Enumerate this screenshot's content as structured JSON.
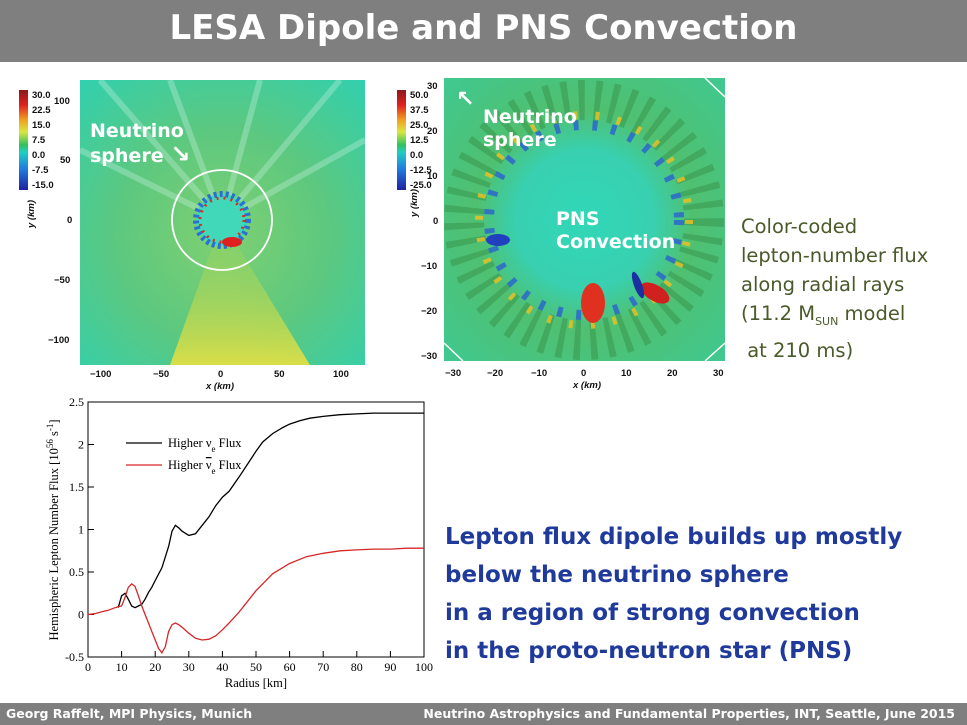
{
  "slide": {
    "title": "LESA Dipole and PNS Convection",
    "footer_left": "Georg Raffelt, MPI Physics, Munich",
    "footer_right": "Neutrino Astrophysics and Fundamental Properties, INT, Seattle, June 2015"
  },
  "left_map": {
    "colorbar_ticks": [
      "30.0",
      "22.5",
      "15.0",
      "7.5",
      "0.0",
      "-7.5",
      "-15.0"
    ],
    "y_ticks": [
      "100",
      "50",
      "0",
      "−50",
      "−100"
    ],
    "x_ticks": [
      "−100",
      "−50",
      "0",
      "50",
      "100"
    ],
    "y_label": "y (km)",
    "x_label": "x (km)",
    "label_line1": "Neutrino",
    "label_line2": "sphere",
    "arrow": "↘"
  },
  "right_map": {
    "colorbar_ticks": [
      "50.0",
      "37.5",
      "25.0",
      "12.5",
      "0.0",
      "-12.5",
      "-25.0"
    ],
    "y_ticks": [
      "30",
      "20",
      "10",
      "0",
      "−10",
      "−20",
      "−30"
    ],
    "x_ticks": [
      "−30",
      "−20",
      "−10",
      "0",
      "10",
      "20",
      "30"
    ],
    "y_label": "y (km)",
    "x_label": "x (km)",
    "label_line1": "Neutrino",
    "label_line2": "sphere",
    "arrow": "↖",
    "convection_line1": "PNS",
    "convection_line2": "Convection"
  },
  "caption": {
    "line1": "Color-coded",
    "line2": "lepton-number flux",
    "line3": "along radial rays",
    "line4_pre": "(11.2 M",
    "line4_sub": "SUN",
    "line4_post": " model",
    "line5": " at 210 ms)"
  },
  "headline": {
    "line1": "Lepton flux dipole builds up mostly",
    "line2": "below the neutrino sphere",
    "line3": "in a region of strong convection",
    "line4": "in the proto-neutron star (PNS)"
  },
  "chart_data": {
    "type": "line",
    "xlabel": "Radius [km]",
    "ylabel": "Hemispheric Lepton Number Flux [10^56 s^-1]",
    "xlim": [
      0,
      100
    ],
    "ylim": [
      -0.5,
      2.5
    ],
    "x_ticks": [
      0,
      10,
      20,
      30,
      40,
      50,
      60,
      70,
      80,
      90,
      100
    ],
    "y_ticks": [
      -0.5,
      0,
      0.5,
      1,
      1.5,
      2,
      2.5
    ],
    "legend_position": "upper-left",
    "series": [
      {
        "name": "Higher νe Flux",
        "color": "#000000",
        "x": [
          9,
          10,
          11,
          12,
          13,
          14,
          15,
          16,
          17,
          18,
          19,
          20,
          22,
          24,
          25,
          26,
          27,
          28,
          30,
          32,
          34,
          36,
          38,
          40,
          42,
          45,
          48,
          50,
          52,
          55,
          58,
          60,
          63,
          66,
          70,
          75,
          80,
          85,
          90,
          95,
          100
        ],
        "y": [
          0.08,
          0.22,
          0.25,
          0.18,
          0.1,
          0.08,
          0.1,
          0.12,
          0.18,
          0.26,
          0.32,
          0.4,
          0.55,
          0.8,
          0.98,
          1.05,
          1.02,
          0.98,
          0.93,
          0.95,
          1.05,
          1.15,
          1.28,
          1.38,
          1.45,
          1.62,
          1.8,
          1.92,
          2.03,
          2.13,
          2.2,
          2.24,
          2.28,
          2.31,
          2.33,
          2.35,
          2.36,
          2.37,
          2.37,
          2.37,
          2.37
        ]
      },
      {
        "name": "Higher anti-νe Flux",
        "color": "#d62728",
        "x": [
          0,
          2,
          4,
          6,
          8,
          9,
          10,
          11,
          12,
          13,
          14,
          15,
          16,
          17,
          18,
          19,
          20,
          21,
          22,
          23,
          24,
          25,
          26,
          27,
          28,
          30,
          32,
          34,
          36,
          38,
          40,
          42,
          45,
          48,
          50,
          55,
          60,
          65,
          70,
          75,
          80,
          85,
          90,
          95,
          100
        ],
        "y": [
          0.0,
          0.01,
          0.03,
          0.05,
          0.08,
          0.09,
          0.1,
          0.2,
          0.32,
          0.36,
          0.33,
          0.22,
          0.1,
          0.0,
          -0.1,
          -0.2,
          -0.3,
          -0.4,
          -0.45,
          -0.38,
          -0.2,
          -0.12,
          -0.1,
          -0.12,
          -0.15,
          -0.22,
          -0.28,
          -0.3,
          -0.29,
          -0.25,
          -0.18,
          -0.1,
          0.03,
          0.18,
          0.28,
          0.48,
          0.6,
          0.68,
          0.72,
          0.75,
          0.76,
          0.77,
          0.77,
          0.78,
          0.78
        ]
      }
    ]
  }
}
